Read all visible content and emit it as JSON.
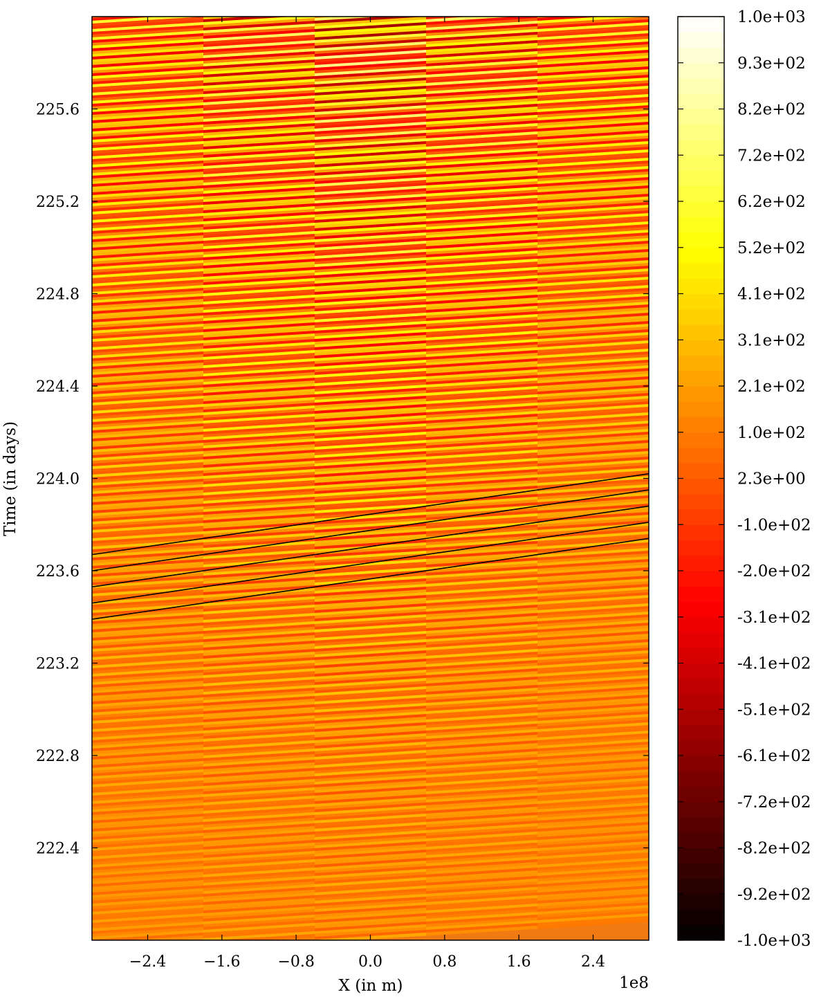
{
  "chart_data": {
    "type": "heatmap",
    "xlabel": "X (in m)",
    "ylabel": "Time (in days)",
    "x_offset_label": "1e8",
    "x_ticks": [
      -2.4,
      -1.6,
      -0.8,
      0.0,
      0.8,
      1.6,
      2.4
    ],
    "x_tick_labels": [
      "−2.4",
      "−1.6",
      "−0.8",
      "0.0",
      "0.8",
      "1.6",
      "2.4"
    ],
    "xlim": [
      -3.0,
      3.0
    ],
    "y_ticks": [
      222.4,
      222.8,
      223.2,
      223.6,
      224.0,
      224.4,
      224.8,
      225.2,
      225.6
    ],
    "y_tick_labels": [
      "222.4",
      "222.8",
      "223.2",
      "223.6",
      "224.0",
      "224.4",
      "224.8",
      "225.2",
      "225.6"
    ],
    "ylim": [
      222.0,
      226.0
    ],
    "colorbar": {
      "min": -1000,
      "max": 1000,
      "ticks": [
        1000,
        930,
        820,
        720,
        620,
        520,
        410,
        310,
        210,
        100,
        2.3,
        -100,
        -200,
        -310,
        -410,
        -510,
        -610,
        -720,
        -820,
        -920,
        -1000
      ],
      "tick_labels": [
        "1.0e+03",
        "9.3e+02",
        "8.2e+02",
        "7.2e+02",
        "6.2e+02",
        "5.2e+02",
        "4.1e+02",
        "3.1e+02",
        "2.1e+02",
        "1.0e+02",
        "2.3e+00",
        "-1.0e+02",
        "-2.0e+02",
        "-3.1e+02",
        "-4.1e+02",
        "-5.1e+02",
        "-6.1e+02",
        "-7.2e+02",
        "-8.2e+02",
        "-9.2e+02",
        "-1.0e+03"
      ],
      "colormap": "hot"
    },
    "overlay_lines": [
      {
        "x": [
          -3.0,
          3.0
        ],
        "y": [
          223.67,
          224.02
        ]
      },
      {
        "x": [
          -3.0,
          3.0
        ],
        "y": [
          223.6,
          223.95
        ]
      },
      {
        "x": [
          -3.0,
          3.0
        ],
        "y": [
          223.53,
          223.88
        ]
      },
      {
        "x": [
          -3.0,
          3.0
        ],
        "y": [
          223.46,
          223.81
        ]
      },
      {
        "x": [
          -3.0,
          3.0
        ],
        "y": [
          223.39,
          223.74
        ]
      }
    ],
    "grid": false
  }
}
